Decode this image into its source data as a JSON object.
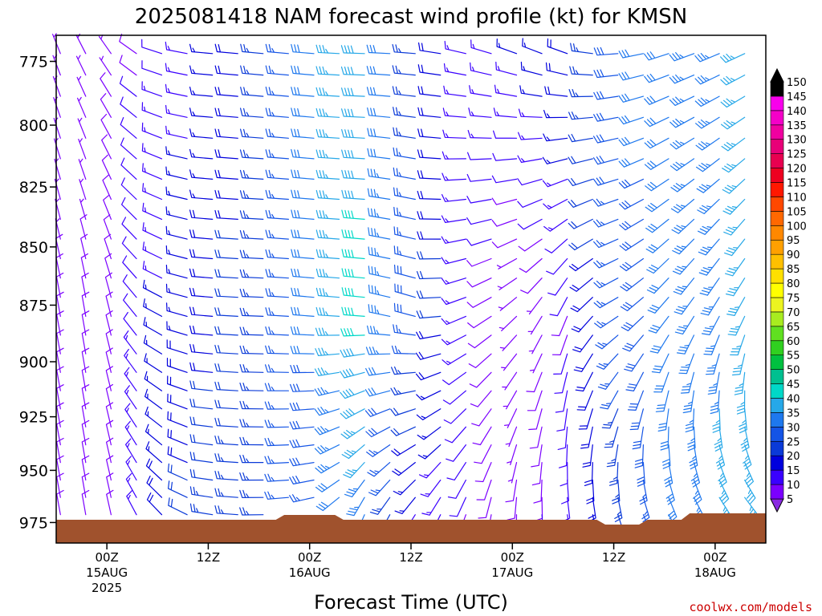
{
  "chart_data": {
    "type": "wind-barb-time-height",
    "title": "2025081418 NAM forecast wind profile (kt) for KMSN",
    "xlabel": "Forecast Time (UTC)",
    "ylabel": "",
    "y_scale": "pressure-inverted",
    "ylim": [
      985,
      765
    ],
    "y_ticks": [
      775,
      800,
      825,
      850,
      875,
      900,
      925,
      950,
      975
    ],
    "x_ticks": [
      {
        "hour": 0,
        "label": "00Z",
        "sub1": "15AUG",
        "sub2": "2025"
      },
      {
        "hour": 12,
        "label": "12Z",
        "sub1": "",
        "sub2": ""
      },
      {
        "hour": 24,
        "label": "00Z",
        "sub1": "16AUG",
        "sub2": ""
      },
      {
        "hour": 36,
        "label": "12Z",
        "sub1": "",
        "sub2": ""
      },
      {
        "hour": 48,
        "label": "00Z",
        "sub1": "17AUG",
        "sub2": ""
      },
      {
        "hour": 60,
        "label": "12Z",
        "sub1": "",
        "sub2": ""
      },
      {
        "hour": 72,
        "label": "00Z",
        "sub1": "18AUG",
        "sub2": ""
      }
    ],
    "xlim": [
      -6,
      78
    ],
    "colorbar": {
      "levels": [
        5,
        10,
        15,
        20,
        25,
        30,
        35,
        40,
        45,
        50,
        55,
        60,
        65,
        70,
        75,
        80,
        85,
        90,
        95,
        100,
        105,
        110,
        115,
        120,
        125,
        130,
        135,
        140,
        145,
        150
      ],
      "colors": [
        "#8a2be2",
        "#7b00ff",
        "#3a00ff",
        "#0000dd",
        "#0a3ad8",
        "#1454e6",
        "#1e78ee",
        "#26a8e8",
        "#00d8c8",
        "#00c090",
        "#00c040",
        "#30d020",
        "#60e020",
        "#a8ec20",
        "#ecf420",
        "#ffff00",
        "#ffe000",
        "#ffc000",
        "#ffa000",
        "#ff8800",
        "#ff6800",
        "#ff4800",
        "#ff1800",
        "#ee0020",
        "#e80050",
        "#e80078",
        "#f000a0",
        "#f400c8",
        "#f800ec",
        "#000000"
      ]
    },
    "surface_color": "#a0522d",
    "wind_by_hour": [
      {
        "h": -6,
        "low_spd": 8,
        "low_dir": 350,
        "mid_spd": 8,
        "mid_dir": 350,
        "up_spd": 6,
        "up_dir": 340
      },
      {
        "h": 0,
        "low_spd": 9,
        "low_dir": 350,
        "mid_spd": 8,
        "mid_dir": 350,
        "up_spd": 7,
        "up_dir": 330
      },
      {
        "h": 6,
        "low_spd": 18,
        "low_dir": 320,
        "mid_spd": 15,
        "mid_dir": 300,
        "up_spd": 12,
        "up_dir": 290
      },
      {
        "h": 12,
        "low_spd": 23,
        "low_dir": 280,
        "mid_spd": 18,
        "mid_dir": 275,
        "up_spd": 16,
        "up_dir": 275
      },
      {
        "h": 18,
        "low_spd": 25,
        "low_dir": 270,
        "mid_spd": 22,
        "mid_dir": 272,
        "up_spd": 22,
        "up_dir": 275
      },
      {
        "h": 24,
        "low_spd": 26,
        "low_dir": 260,
        "mid_spd": 30,
        "mid_dir": 275,
        "up_spd": 30,
        "up_dir": 275
      },
      {
        "h": 30,
        "low_spd": 35,
        "low_dir": 200,
        "mid_spd": 42,
        "mid_dir": 275,
        "up_spd": 40,
        "up_dir": 272
      },
      {
        "h": 36,
        "low_spd": 14,
        "low_dir": 210,
        "mid_spd": 30,
        "mid_dir": 290,
        "up_spd": 24,
        "up_dir": 275
      },
      {
        "h": 42,
        "low_spd": 10,
        "low_dir": 200,
        "mid_spd": 14,
        "mid_dir": 250,
        "up_spd": 14,
        "up_dir": 280
      },
      {
        "h": 48,
        "low_spd": 8,
        "low_dir": 180,
        "mid_spd": 5,
        "mid_dir": 230,
        "up_spd": 14,
        "up_dir": 285
      },
      {
        "h": 54,
        "low_spd": 12,
        "low_dir": 170,
        "mid_spd": 8,
        "mid_dir": 200,
        "up_spd": 18,
        "up_dir": 285
      },
      {
        "h": 60,
        "low_spd": 22,
        "low_dir": 160,
        "mid_spd": 26,
        "mid_dir": 240,
        "up_spd": 28,
        "up_dir": 265
      },
      {
        "h": 66,
        "low_spd": 30,
        "low_dir": 150,
        "mid_spd": 32,
        "mid_dir": 220,
        "up_spd": 32,
        "up_dir": 250
      },
      {
        "h": 72,
        "low_spd": 36,
        "low_dir": 140,
        "mid_spd": 34,
        "mid_dir": 210,
        "up_spd": 34,
        "up_dir": 245
      },
      {
        "h": 78,
        "low_spd": 38,
        "low_dir": 130,
        "mid_spd": 36,
        "mid_dir": 205,
        "up_spd": 36,
        "up_dir": 240
      }
    ]
  },
  "watermark": "coolwx.com/models"
}
